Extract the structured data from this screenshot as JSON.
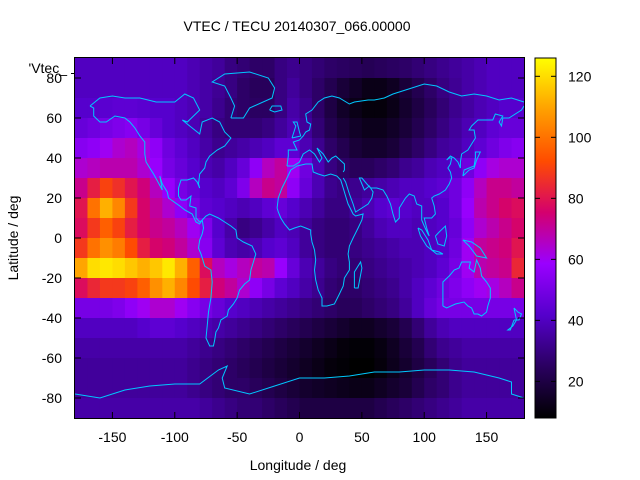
{
  "chart_data": {
    "type": "heatmap",
    "title": "VTEC / TECU 20140307_066.00000",
    "key_label": "'Vtec_",
    "xlabel": "Longitude / deg",
    "ylabel": "Latitude / deg",
    "xlim": [
      -180,
      180
    ],
    "ylim": [
      -90,
      90
    ],
    "xticks": [
      -150,
      -100,
      -50,
      0,
      50,
      100,
      150
    ],
    "yticks": [
      -80,
      -60,
      -40,
      -20,
      0,
      20,
      40,
      60,
      80
    ],
    "colorbar": {
      "range": [
        8,
        126
      ],
      "ticks": [
        20,
        40,
        60,
        80,
        100,
        120
      ],
      "palette": [
        "#000000",
        "#2a0060",
        "#5500cc",
        "#9a00ff",
        "#d4006e",
        "#ff4c00",
        "#ffa000",
        "#ffff00"
      ]
    },
    "grid_step_deg": 10,
    "lat_rows": [
      85,
      75,
      65,
      55,
      45,
      35,
      25,
      15,
      5,
      -5,
      -15,
      -25,
      -35,
      -45,
      -55,
      -65,
      -75,
      -85
    ],
    "lon_cols": [
      -175,
      -165,
      -155,
      -145,
      -135,
      -125,
      -115,
      -105,
      -95,
      -85,
      -75,
      -65,
      -55,
      -45,
      -35,
      -25,
      -15,
      -5,
      5,
      15,
      25,
      35,
      45,
      55,
      65,
      75,
      85,
      95,
      105,
      115,
      125,
      135,
      145,
      155,
      165,
      175
    ],
    "values": [
      [
        40,
        40,
        40,
        40,
        40,
        40,
        40,
        40,
        40,
        38,
        36,
        34,
        30,
        28,
        26,
        26,
        30,
        32,
        30,
        28,
        26,
        25,
        24,
        23,
        24,
        25,
        26,
        28,
        30,
        32,
        34,
        36,
        38,
        40,
        40,
        40
      ],
      [
        40,
        40,
        40,
        40,
        40,
        40,
        40,
        40,
        40,
        38,
        36,
        33,
        30,
        26,
        24,
        24,
        30,
        34,
        30,
        26,
        22,
        18,
        15,
        12,
        12,
        14,
        18,
        22,
        26,
        30,
        33,
        36,
        38,
        40,
        40,
        40
      ],
      [
        42,
        42,
        43,
        44,
        44,
        43,
        42,
        42,
        40,
        38,
        36,
        32,
        28,
        26,
        25,
        25,
        30,
        36,
        32,
        26,
        20,
        15,
        12,
        10,
        10,
        12,
        16,
        20,
        24,
        28,
        32,
        35,
        38,
        40,
        42,
        42
      ],
      [
        46,
        48,
        50,
        52,
        54,
        50,
        46,
        42,
        40,
        38,
        34,
        30,
        28,
        28,
        28,
        30,
        34,
        38,
        34,
        28,
        22,
        18,
        15,
        13,
        13,
        15,
        18,
        22,
        26,
        30,
        34,
        38,
        40,
        44,
        46,
        46
      ],
      [
        54,
        56,
        60,
        64,
        66,
        62,
        56,
        48,
        44,
        40,
        36,
        32,
        34,
        36,
        38,
        40,
        44,
        44,
        38,
        32,
        26,
        22,
        18,
        16,
        16,
        18,
        22,
        26,
        30,
        34,
        36,
        40,
        44,
        48,
        52,
        54
      ],
      [
        64,
        66,
        68,
        68,
        68,
        64,
        58,
        50,
        46,
        42,
        38,
        36,
        40,
        46,
        56,
        66,
        70,
        60,
        48,
        38,
        30,
        26,
        24,
        24,
        26,
        28,
        32,
        34,
        38,
        40,
        42,
        48,
        56,
        62,
        64,
        64
      ],
      [
        72,
        82,
        90,
        86,
        80,
        74,
        66,
        58,
        50,
        46,
        42,
        40,
        44,
        52,
        66,
        72,
        70,
        56,
        46,
        38,
        32,
        30,
        32,
        34,
        36,
        38,
        40,
        40,
        42,
        44,
        48,
        56,
        66,
        72,
        72,
        70
      ],
      [
        80,
        100,
        112,
        104,
        88,
        76,
        70,
        64,
        56,
        50,
        44,
        42,
        40,
        38,
        40,
        44,
        46,
        42,
        38,
        34,
        30,
        30,
        34,
        38,
        42,
        44,
        42,
        40,
        40,
        42,
        48,
        58,
        68,
        72,
        76,
        78
      ],
      [
        78,
        88,
        96,
        90,
        82,
        76,
        72,
        70,
        66,
        60,
        52,
        42,
        36,
        30,
        32,
        36,
        40,
        38,
        34,
        30,
        28,
        28,
        30,
        34,
        38,
        40,
        40,
        38,
        40,
        42,
        46,
        56,
        64,
        68,
        72,
        76
      ],
      [
        88,
        100,
        106,
        102,
        92,
        82,
        76,
        74,
        70,
        64,
        54,
        44,
        38,
        36,
        38,
        42,
        44,
        40,
        34,
        30,
        28,
        28,
        30,
        32,
        34,
        36,
        38,
        38,
        40,
        42,
        48,
        60,
        70,
        72,
        74,
        80
      ],
      [
        110,
        120,
        122,
        120,
        116,
        112,
        116,
        122,
        112,
        96,
        78,
        66,
        62,
        66,
        70,
        68,
        58,
        46,
        38,
        34,
        30,
        28,
        28,
        30,
        32,
        34,
        36,
        38,
        40,
        44,
        50,
        60,
        68,
        70,
        72,
        84
      ],
      [
        78,
        84,
        88,
        88,
        90,
        96,
        106,
        112,
        104,
        92,
        82,
        74,
        70,
        64,
        56,
        50,
        44,
        40,
        36,
        32,
        28,
        26,
        26,
        28,
        30,
        32,
        36,
        40,
        44,
        48,
        52,
        56,
        60,
        62,
        66,
        72
      ],
      [
        50,
        50,
        50,
        52,
        56,
        60,
        64,
        64,
        60,
        54,
        50,
        46,
        42,
        40,
        38,
        36,
        34,
        32,
        30,
        28,
        26,
        24,
        24,
        26,
        28,
        30,
        34,
        40,
        46,
        50,
        50,
        50,
        50,
        50,
        50,
        50
      ],
      [
        40,
        40,
        40,
        40,
        40,
        42,
        44,
        44,
        42,
        40,
        38,
        36,
        34,
        32,
        30,
        28,
        26,
        24,
        22,
        20,
        18,
        16,
        14,
        14,
        16,
        18,
        22,
        28,
        34,
        38,
        40,
        40,
        40,
        40,
        40,
        40
      ],
      [
        36,
        36,
        36,
        36,
        36,
        36,
        36,
        36,
        36,
        34,
        32,
        30,
        28,
        26,
        24,
        22,
        20,
        18,
        16,
        14,
        12,
        10,
        9,
        9,
        11,
        14,
        18,
        22,
        28,
        32,
        34,
        36,
        36,
        36,
        36,
        36
      ],
      [
        34,
        34,
        34,
        34,
        34,
        34,
        34,
        34,
        34,
        32,
        30,
        28,
        26,
        24,
        22,
        20,
        18,
        16,
        14,
        12,
        10,
        9,
        8,
        8,
        10,
        13,
        16,
        20,
        24,
        28,
        32,
        34,
        34,
        34,
        34,
        34
      ],
      [
        34,
        34,
        34,
        34,
        34,
        34,
        34,
        34,
        34,
        32,
        30,
        28,
        26,
        26,
        24,
        22,
        20,
        18,
        16,
        15,
        14,
        13,
        12,
        12,
        14,
        16,
        18,
        22,
        26,
        28,
        32,
        34,
        34,
        34,
        34,
        34
      ],
      [
        36,
        36,
        36,
        36,
        36,
        36,
        36,
        36,
        36,
        36,
        34,
        32,
        30,
        28,
        28,
        26,
        24,
        22,
        20,
        20,
        20,
        20,
        20,
        20,
        22,
        24,
        26,
        28,
        30,
        32,
        34,
        36,
        36,
        36,
        36,
        36
      ]
    ]
  }
}
